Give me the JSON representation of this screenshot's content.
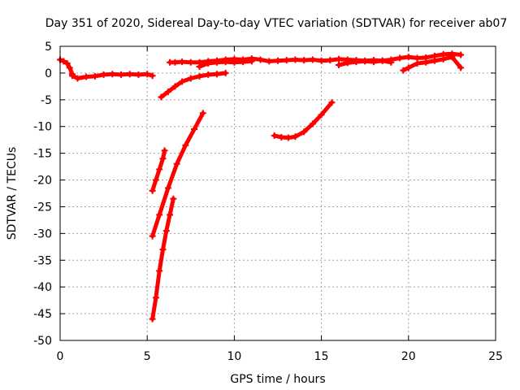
{
  "chart_data": {
    "type": "scatter",
    "title": "Day 351 of 2020, Sidereal Day-to-day VTEC variation (SDTVAR) for receiver ab07",
    "xlabel": "GPS time / hours",
    "ylabel": "SDTVAR / TECUs",
    "xlim": [
      0,
      25
    ],
    "ylim": [
      -50,
      5
    ],
    "x_ticks": [
      0,
      5,
      10,
      15,
      20,
      25
    ],
    "y_ticks": [
      5,
      0,
      -5,
      -10,
      -15,
      -20,
      -25,
      -30,
      -35,
      -40,
      -45,
      -50
    ],
    "x_tick_labels": [
      "0",
      "5",
      "10",
      "15",
      "20",
      "25"
    ],
    "y_tick_labels": [
      "5",
      "0",
      "-5",
      "-10",
      "-15",
      "-20",
      "-25",
      "-30",
      "-35",
      "-40",
      "-45",
      "-50"
    ],
    "grid": true,
    "legend": "none",
    "marker_color": "#ff0000",
    "series": [
      {
        "x": [
          0.0,
          0.2,
          0.4,
          0.55,
          0.7
        ],
        "y": [
          2.5,
          2.2,
          1.8,
          1.0,
          -0.2
        ]
      },
      {
        "x": [
          0.7,
          1.0,
          1.5,
          2.0,
          2.5,
          3.0,
          3.5,
          4.0,
          4.5,
          5.0,
          5.3
        ],
        "y": [
          -0.5,
          -1.0,
          -0.7,
          -0.6,
          -0.3,
          -0.2,
          -0.3,
          -0.2,
          -0.3,
          -0.2,
          -0.5
        ]
      },
      {
        "x": [
          6.3,
          6.6,
          7.0,
          7.5,
          8.0,
          8.5,
          9.0,
          9.5,
          10.0,
          10.5,
          11.0,
          11.5,
          12.0,
          12.5,
          13.0,
          13.5,
          14.0,
          14.5,
          15.0,
          15.5,
          16.0,
          16.5,
          17.0,
          17.5,
          18.0,
          18.5,
          19.0,
          19.5,
          20.0,
          20.5,
          21.0,
          21.5,
          22.0,
          22.5,
          23.0
        ],
        "y": [
          2.0,
          2.0,
          2.1,
          2.0,
          2.0,
          2.2,
          2.3,
          2.5,
          2.6,
          2.5,
          2.7,
          2.5,
          2.2,
          2.3,
          2.4,
          2.5,
          2.4,
          2.5,
          2.3,
          2.4,
          2.6,
          2.5,
          2.4,
          2.3,
          2.4,
          2.3,
          2.5,
          2.8,
          3.0,
          2.8,
          2.9,
          3.2,
          3.5,
          3.6,
          3.4
        ]
      },
      {
        "x": [
          8.0,
          8.5,
          9.0,
          9.5,
          10.0,
          10.5,
          11.0
        ],
        "y": [
          1.2,
          1.8,
          2.0,
          2.1,
          2.0,
          2.1,
          2.2
        ]
      },
      {
        "x": [
          16.0,
          16.5,
          17.0,
          17.5,
          18.0,
          18.5,
          19.0
        ],
        "y": [
          1.5,
          1.9,
          2.1,
          2.2,
          2.1,
          2.3,
          2.0
        ]
      },
      {
        "x": [
          19.7,
          20.0,
          20.5,
          21.0,
          21.5,
          22.0,
          22.5,
          23.0
        ],
        "y": [
          0.5,
          1.0,
          1.8,
          2.0,
          2.3,
          2.6,
          3.0,
          1.0
        ]
      },
      {
        "x": [
          5.8,
          6.2,
          6.6,
          7.0,
          7.5,
          8.0,
          8.5,
          9.0,
          9.5
        ],
        "y": [
          -4.5,
          -3.5,
          -2.5,
          -1.6,
          -1.0,
          -0.6,
          -0.3,
          -0.2,
          0.0
        ]
      },
      {
        "x": [
          5.3,
          5.5,
          5.7,
          5.9,
          6.0
        ],
        "y": [
          -22.0,
          -20.0,
          -18.0,
          -16.0,
          -14.5
        ]
      },
      {
        "x": [
          5.3,
          5.7,
          6.2,
          6.7,
          7.2,
          7.7,
          8.2
        ],
        "y": [
          -30.5,
          -26.5,
          -21.5,
          -17.0,
          -13.5,
          -10.5,
          -7.5
        ]
      },
      {
        "x": [
          5.3,
          5.5,
          5.7,
          5.9,
          6.1,
          6.3,
          6.5
        ],
        "y": [
          -46.0,
          -42.0,
          -37.0,
          -33.0,
          -29.5,
          -26.5,
          -23.5
        ]
      },
      {
        "x": [
          12.3,
          12.7,
          13.1,
          13.5,
          14.0,
          14.5,
          15.0,
          15.6
        ],
        "y": [
          -11.7,
          -12.0,
          -12.1,
          -11.9,
          -11.0,
          -9.5,
          -7.8,
          -5.5
        ]
      }
    ]
  }
}
